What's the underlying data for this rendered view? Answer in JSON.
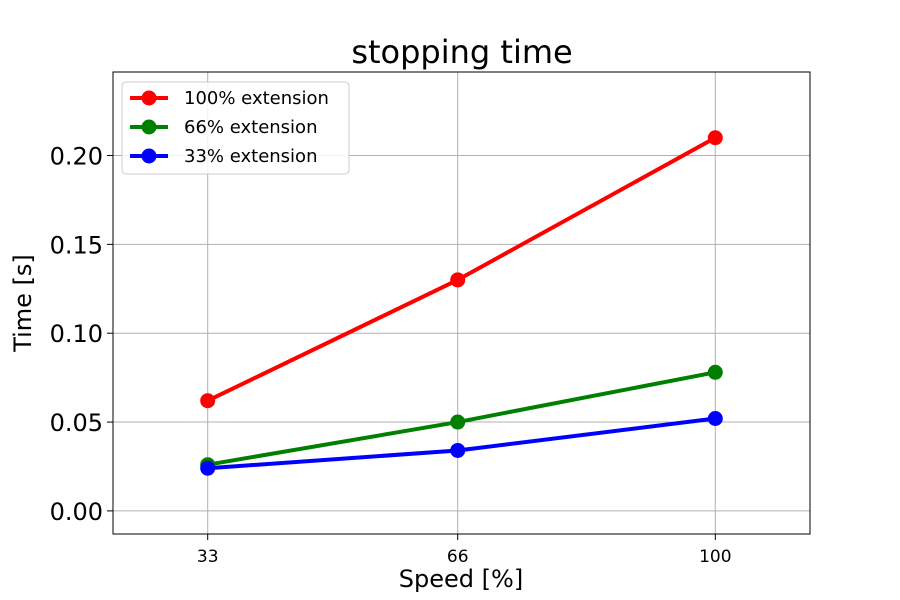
{
  "chart_data": {
    "type": "line",
    "title": "stopping time",
    "xlabel": "Speed [%]",
    "ylabel": "Time [s]",
    "x": [
      33,
      66,
      100
    ],
    "x_tick_labels": [
      "33",
      "66",
      "100"
    ],
    "y_tick_labels": [
      "0.00",
      "0.05",
      "0.10",
      "0.15",
      "0.20"
    ],
    "y_ticks": [
      0.0,
      0.05,
      0.1,
      0.15,
      0.2
    ],
    "xlim": [
      20.5,
      112.5
    ],
    "ylim": [
      -0.013,
      0.247
    ],
    "grid": true,
    "legend_position": "upper-left",
    "series": [
      {
        "name": "100% extension",
        "color": "#ff0000",
        "values": [
          0.062,
          0.13,
          0.21
        ]
      },
      {
        "name": "66% extension",
        "color": "#008000",
        "values": [
          0.026,
          0.05,
          0.078
        ]
      },
      {
        "name": "33% extension",
        "color": "#0000ff",
        "values": [
          0.024,
          0.034,
          0.052
        ]
      }
    ]
  }
}
